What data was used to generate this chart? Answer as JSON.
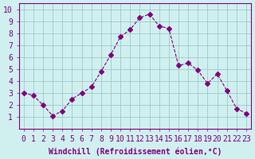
{
  "x": [
    0,
    1,
    2,
    3,
    4,
    5,
    6,
    7,
    8,
    9,
    10,
    11,
    12,
    13,
    14,
    15,
    16,
    17,
    18,
    19,
    20,
    21,
    22,
    23
  ],
  "y": [
    3.0,
    2.8,
    2.0,
    1.1,
    1.5,
    2.5,
    3.0,
    3.5,
    4.8,
    6.2,
    7.7,
    8.3,
    9.3,
    9.6,
    8.6,
    8.4,
    5.3,
    5.5,
    4.9,
    3.8,
    4.6,
    3.2,
    1.7,
    1.3
  ],
  "line_color": "#800080",
  "marker": "D",
  "marker_size": 3,
  "line_width": 0.8,
  "bg_color": "#d0f0f0",
  "grid_color": "#a0c8c8",
  "xlabel": "Windchill (Refroidissement éolien,°C)",
  "ylabel": "",
  "xlim": [
    -0.5,
    23.5
  ],
  "ylim": [
    0,
    10.5
  ],
  "xticks": [
    0,
    1,
    2,
    3,
    4,
    5,
    6,
    7,
    8,
    9,
    10,
    11,
    12,
    13,
    14,
    15,
    16,
    17,
    18,
    19,
    20,
    21,
    22,
    23
  ],
  "yticks": [
    1,
    2,
    3,
    4,
    5,
    6,
    7,
    8,
    9,
    10
  ],
  "tick_color": "#800080",
  "label_color": "#800080",
  "font_size_xlabel": 7,
  "font_size_ticks": 7
}
